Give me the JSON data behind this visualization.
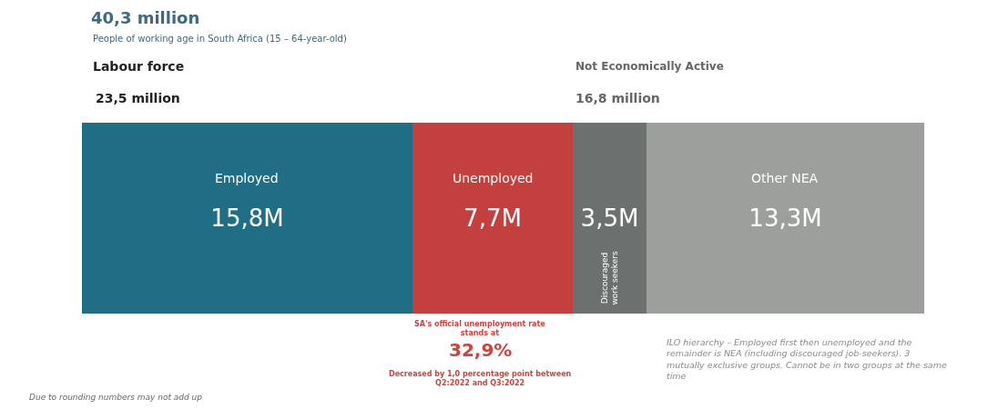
{
  "chart_data": {
    "type": "bar",
    "orientation": "horizontal",
    "stacked": true,
    "legend": false,
    "title": "40,3 million",
    "subtitle": "People of working age in South Africa (15 – 64-year-old)",
    "categories": [
      null
    ],
    "xlim": [
      0,
      40.3
    ],
    "series": [
      {
        "name": "Employed",
        "color": "#1f6e85",
        "values": [
          15.8
        ],
        "value_labels": [
          "15,8M"
        ]
      },
      {
        "name": "Unemployed",
        "color": "#c4403f",
        "values": [
          7.7
        ],
        "value_labels": [
          "7,7M"
        ]
      },
      {
        "name": "Discouraged\nwork seekers",
        "color": "#6c7170",
        "values": [
          3.5
        ],
        "value_labels": [
          "3,5M"
        ]
      },
      {
        "name": "Other NEA",
        "color": "#9d9f9d",
        "values": [
          13.3
        ],
        "value_labels": [
          "13,3M"
        ]
      }
    ],
    "annotations": [
      "Labour force",
      "23,5 million",
      "Not Economically Active",
      "16,8 million",
      "SA's official unemployment rate\nstands at",
      "32,9%",
      "Decreased by 1,0 percentage point between\nQ2:2022 and Q3:2022",
      "ILO hierarchy – Employed first then unemployed and the\nremainder is NEA (including discouraged job-seekers). 3\nmutually exclusive groups. Cannot be in two groups at the same\ntime",
      "Due to rounding numbers may not add up"
    ]
  }
}
